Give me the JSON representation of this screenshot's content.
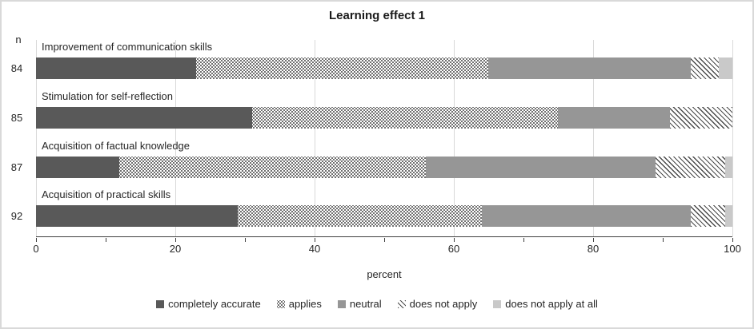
{
  "title": "Learning effect 1",
  "axis": {
    "n_header": "n",
    "xlabel": "percent",
    "major_ticks": [
      0,
      20,
      40,
      60,
      80,
      100
    ],
    "minor_tick_step": 10,
    "xlim": [
      0,
      100
    ]
  },
  "colors": {
    "completely_accurate": "#595959",
    "neutral": "#969696",
    "does_not_apply_at_all": "#c9c9c9",
    "pattern_ink": "#404040",
    "gridline": "#d9d9d9",
    "axis_line": "#404040"
  },
  "chart_data": {
    "type": "bar",
    "orientation": "horizontal",
    "stacked": true,
    "title": "Learning effect 1",
    "xlabel": "percent",
    "xlim": [
      0,
      100
    ],
    "grid": true,
    "legend_position": "bottom",
    "categories": [
      "Improvement of communication skills",
      "Stimulation for self-reflection",
      "Acquisition of factual knowledge",
      "Acquisition of practical skills"
    ],
    "n_values": [
      84,
      85,
      87,
      92
    ],
    "series": [
      {
        "name": "completely accurate",
        "fill": "solid-dark",
        "values": [
          23,
          31,
          12,
          29
        ]
      },
      {
        "name": "applies",
        "fill": "dotted",
        "values": [
          42,
          44,
          44,
          35
        ]
      },
      {
        "name": "neutral",
        "fill": "solid-mid",
        "values": [
          29,
          16,
          33,
          30
        ]
      },
      {
        "name": "does not apply",
        "fill": "diagonal",
        "values": [
          4,
          9,
          10,
          5
        ]
      },
      {
        "name": "does not apply at all",
        "fill": "solid-light",
        "values": [
          2,
          0,
          1,
          1
        ]
      }
    ]
  }
}
